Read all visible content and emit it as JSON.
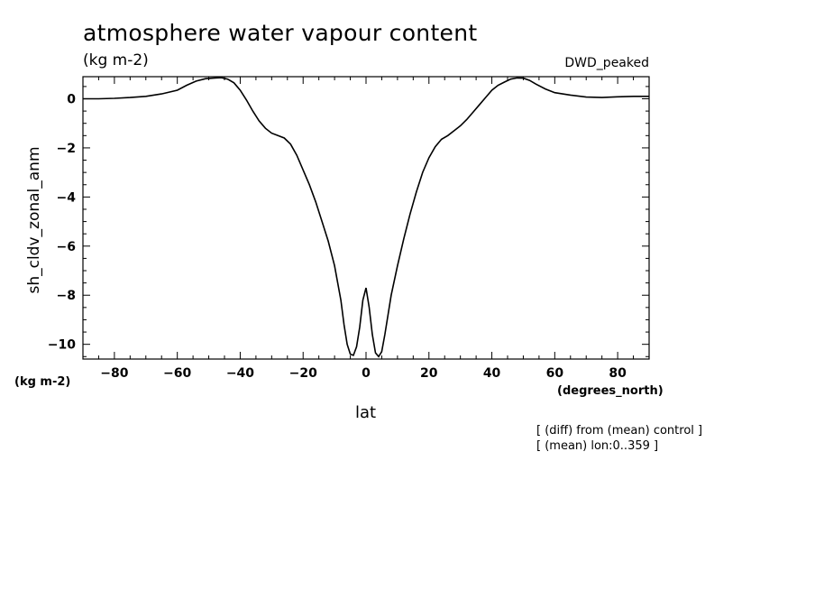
{
  "header": {
    "title": "atmosphere water vapour content",
    "units": "(kg m-2)",
    "experiment": "DWD_peaked"
  },
  "footer": {
    "y_units": "(kg m-2)",
    "x_units": "(degrees_north)",
    "note_diff": "[ (diff) from (mean) control ]",
    "note_mean": "[ (mean) lon:0..359 ]"
  },
  "chart_data": {
    "type": "line",
    "xlabel": "lat",
    "ylabel": "sh_cldv_zonal_anm",
    "xlim": [
      -90,
      90
    ],
    "ylim": [
      -10.6,
      0.9
    ],
    "x_ticks": [
      -80,
      -60,
      -40,
      -20,
      0,
      20,
      40,
      60,
      80
    ],
    "y_ticks": [
      0,
      -2,
      -4,
      -6,
      -8,
      -10
    ],
    "x_tick_labels": [
      "−80",
      "−60",
      "−40",
      "−20",
      "0",
      "20",
      "40",
      "60",
      "80"
    ],
    "y_tick_labels": [
      "0",
      "−2",
      "−4",
      "−6",
      "−8",
      "−10"
    ],
    "grid": false,
    "line_color": "#000000",
    "series": [
      {
        "x": [
          -90,
          -85,
          -80,
          -75,
          -70,
          -65,
          -60,
          -57,
          -54,
          -51,
          -48,
          -46,
          -44,
          -42,
          -40,
          -38,
          -36,
          -34,
          -32,
          -30,
          -28,
          -26,
          -24,
          -22,
          -20,
          -18,
          -16,
          -14,
          -12,
          -10,
          -8,
          -7,
          -6,
          -5,
          -4,
          -3,
          -2,
          -1,
          0,
          1,
          2,
          3,
          4,
          5,
          6,
          7,
          8,
          10,
          12,
          14,
          16,
          18,
          20,
          22,
          24,
          26,
          28,
          30,
          32,
          34,
          36,
          38,
          40,
          42,
          44,
          46,
          48,
          50,
          52,
          54,
          57,
          60,
          65,
          70,
          75,
          80,
          85,
          90
        ],
        "y": [
          0.0,
          0.0,
          0.02,
          0.05,
          0.1,
          0.2,
          0.35,
          0.55,
          0.72,
          0.82,
          0.85,
          0.86,
          0.8,
          0.65,
          0.35,
          -0.05,
          -0.5,
          -0.9,
          -1.2,
          -1.4,
          -1.5,
          -1.6,
          -1.85,
          -2.3,
          -2.9,
          -3.5,
          -4.2,
          -5.0,
          -5.8,
          -6.8,
          -8.2,
          -9.2,
          -10.0,
          -10.4,
          -10.45,
          -10.1,
          -9.3,
          -8.2,
          -7.7,
          -8.5,
          -9.6,
          -10.35,
          -10.5,
          -10.3,
          -9.6,
          -8.8,
          -8.0,
          -6.8,
          -5.7,
          -4.7,
          -3.8,
          -3.0,
          -2.4,
          -1.95,
          -1.65,
          -1.5,
          -1.3,
          -1.1,
          -0.85,
          -0.55,
          -0.25,
          0.05,
          0.35,
          0.55,
          0.68,
          0.8,
          0.85,
          0.84,
          0.75,
          0.6,
          0.4,
          0.25,
          0.15,
          0.07,
          0.05,
          0.08,
          0.1,
          0.1
        ]
      }
    ]
  }
}
